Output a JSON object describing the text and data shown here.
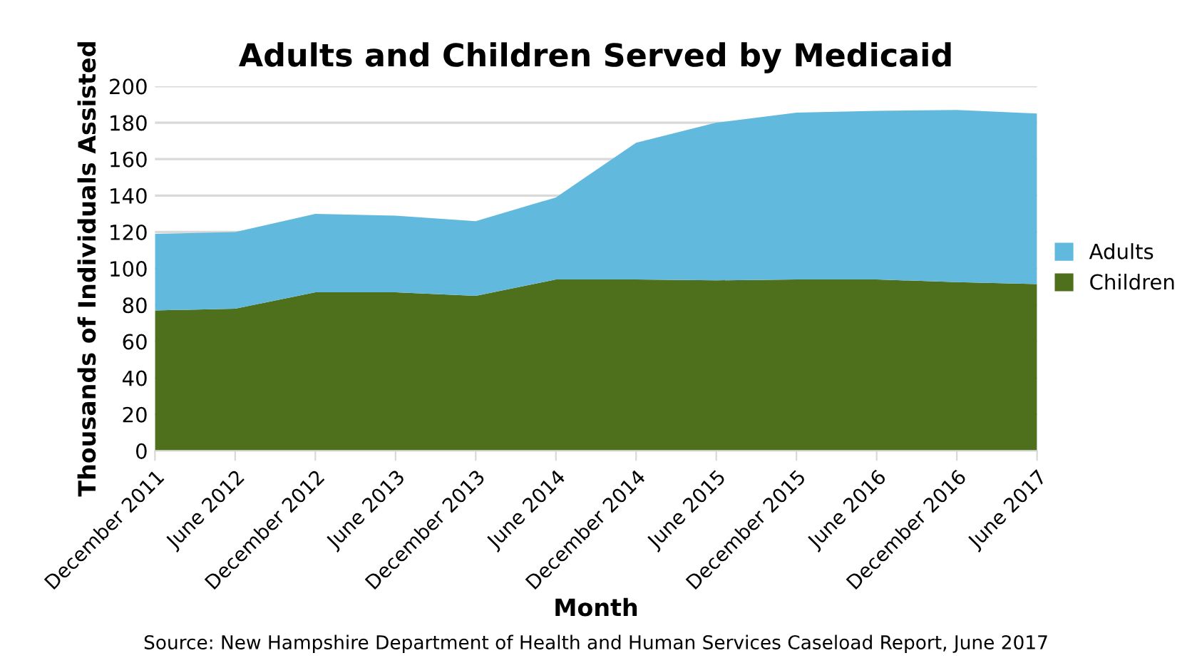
{
  "chart_data": {
    "type": "area",
    "stacked": true,
    "title": "Adults and Children Served by Medicaid",
    "xlabel": "Month",
    "ylabel": "Thousands of Individuals Assisted",
    "categories": [
      "December 2011",
      "June 2012",
      "December 2012",
      "June 2013",
      "December 2013",
      "June 2014",
      "December 2014",
      "June 2015",
      "December 2015",
      "June 2016",
      "December 2016",
      "June 2017"
    ],
    "series": [
      {
        "name": "Children",
        "color": "#4e6f1b",
        "values": [
          77,
          78,
          87,
          87,
          85,
          94,
          94,
          93.5,
          94,
          94,
          92.5,
          91.5
        ]
      },
      {
        "name": "Adults",
        "color": "#62b9de",
        "values": [
          42,
          42,
          43,
          42,
          41,
          45,
          75,
          86.5,
          91.5,
          92.5,
          94.5,
          93.5
        ]
      }
    ],
    "ylim": [
      0,
      200
    ],
    "yticks": [
      0,
      20,
      40,
      60,
      80,
      100,
      120,
      140,
      160,
      180,
      200
    ],
    "grid": "y",
    "legend": "right",
    "annotations": [
      "Source: New Hampshire Department of Health and Human Services Caseload Report, June 2017"
    ]
  }
}
